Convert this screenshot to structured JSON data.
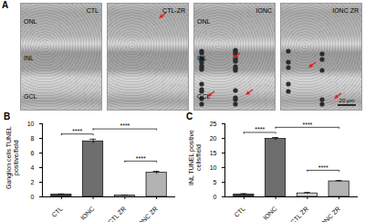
{
  "chart_data": [
    {
      "type": "bar",
      "panel_label": "B",
      "ylabel": "Ganglion cells TUNEL positive/field",
      "categories": [
        "CTL",
        "IONC",
        "CTL ZR",
        "IONC ZR"
      ],
      "values": [
        0.3,
        7.6,
        0.2,
        3.3
      ],
      "errors": [
        0.1,
        0.3,
        0.05,
        0.2
      ],
      "colors": [
        "#444444",
        "#6e6e6e",
        "#d4d4d4",
        "#b3b3b3"
      ],
      "ylim": [
        0,
        10
      ],
      "yticks": [
        0,
        2,
        4,
        6,
        8,
        10
      ],
      "significance": [
        {
          "from": "CTL",
          "to": "IONC",
          "text": "****"
        },
        {
          "from": "IONC",
          "to": "IONC ZR",
          "text": "****"
        },
        {
          "from": "CTL ZR",
          "to": "IONC ZR",
          "text": "****"
        }
      ]
    },
    {
      "type": "bar",
      "panel_label": "C",
      "ylabel": "INL TUNEL positive cells/field",
      "categories": [
        "CTL",
        "IONC",
        "CTL ZR",
        "IONC ZR"
      ],
      "values": [
        0.8,
        19.8,
        1.2,
        5.3
      ],
      "errors": [
        0.3,
        0.5,
        0.3,
        0.3
      ],
      "colors": [
        "#444444",
        "#6e6e6e",
        "#d4d4d4",
        "#b3b3b3"
      ],
      "ylim": [
        0,
        25
      ],
      "yticks": [
        0,
        5,
        10,
        15,
        20,
        25
      ],
      "significance": [
        {
          "from": "CTL",
          "to": "IONC",
          "text": "****"
        },
        {
          "from": "IONC",
          "to": "IONC ZR",
          "text": "****"
        },
        {
          "from": "CTL ZR",
          "to": "IONC ZR",
          "text": "****"
        }
      ]
    }
  ],
  "image_panel": {
    "panel_label": "A",
    "images": [
      "CTL",
      "CTL-ZR",
      "IONC",
      "IONC ZR"
    ],
    "layer_labels": [
      "ONL",
      "INL",
      "GCL"
    ],
    "scale_bar": "20 μm"
  }
}
